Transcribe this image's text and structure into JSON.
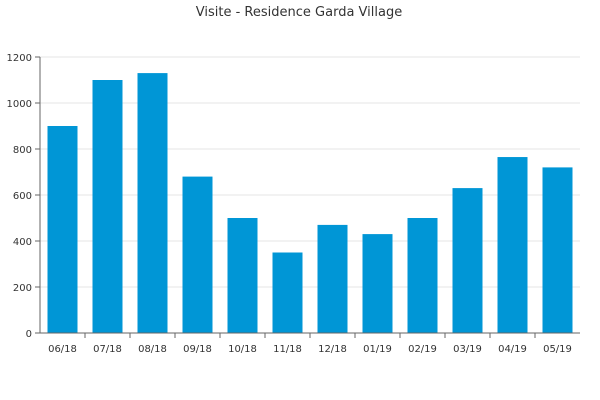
{
  "chart_data": {
    "type": "bar",
    "title": "Visite - Residence Garda Village",
    "xlabel": "",
    "ylabel": "",
    "categories": [
      "06/18",
      "07/18",
      "08/18",
      "09/18",
      "10/18",
      "11/18",
      "12/18",
      "01/19",
      "02/19",
      "03/19",
      "04/19",
      "05/19"
    ],
    "values": [
      900,
      1100,
      1130,
      680,
      500,
      350,
      470,
      430,
      500,
      630,
      765,
      720
    ],
    "ylim": [
      0,
      1200
    ],
    "yticks": [
      0,
      200,
      400,
      600,
      800,
      1000,
      1200
    ],
    "grid": true,
    "legend": "none",
    "bar_color": "#0096d6"
  }
}
